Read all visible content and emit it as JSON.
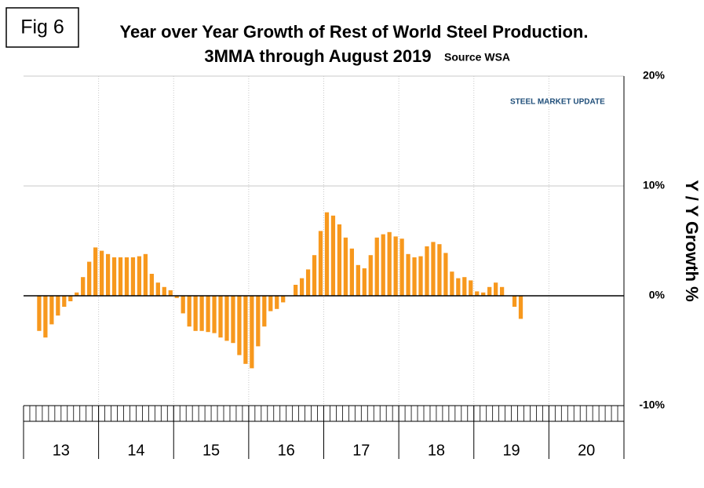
{
  "chart_data": {
    "type": "bar",
    "figure_label": "Fig 6",
    "title": "Year over Year Growth of Rest of World Steel Production.",
    "subtitle": "3MMA through August 2019",
    "source": "Source WSA",
    "logo": "STEEL MARKET UPDATE",
    "y_label": "Y / Y Growth %",
    "color": "#f7981d",
    "grid": true,
    "year_labels": [
      "13",
      "14",
      "15",
      "16",
      "17",
      "18",
      "19",
      "20"
    ],
    "categories": [
      null,
      null,
      null,
      null,
      null,
      null,
      null,
      null,
      null,
      null,
      null,
      null,
      null,
      null,
      null,
      null,
      null,
      null,
      null,
      null,
      null,
      null,
      null,
      null,
      null,
      null,
      null,
      null,
      null,
      null,
      null,
      null,
      null,
      null,
      null,
      null,
      null,
      null,
      null,
      null,
      null,
      null,
      null,
      null,
      null,
      null,
      null,
      null,
      null,
      null,
      null,
      null,
      null,
      null,
      null,
      null,
      null,
      null,
      null,
      null,
      null,
      null,
      null,
      null,
      null,
      null,
      null,
      null,
      null,
      null,
      null,
      null,
      null,
      null,
      null,
      null,
      null,
      null,
      null,
      null,
      null,
      null,
      null,
      null,
      null,
      null,
      null,
      null,
      null,
      null,
      null,
      null,
      null,
      null,
      null,
      null
    ],
    "values": [
      null,
      null,
      -3.2,
      -3.8,
      -2.6,
      -1.8,
      -1.0,
      -0.5,
      0.3,
      1.7,
      3.1,
      4.4,
      4.1,
      3.8,
      3.5,
      3.5,
      3.5,
      3.5,
      3.6,
      3.8,
      2.0,
      1.2,
      0.8,
      0.5,
      -0.2,
      -1.6,
      -2.8,
      -3.2,
      -3.2,
      -3.3,
      -3.4,
      -3.8,
      -4.1,
      -4.3,
      -5.4,
      -6.2,
      -6.6,
      -4.6,
      -2.8,
      -1.4,
      -1.2,
      -0.6,
      0.0,
      1.0,
      1.6,
      2.4,
      3.7,
      5.9,
      7.6,
      7.3,
      6.5,
      5.3,
      4.3,
      2.8,
      2.5,
      3.7,
      5.3,
      5.6,
      5.8,
      5.4,
      5.2,
      3.8,
      3.5,
      3.6,
      4.5,
      4.9,
      4.7,
      3.9,
      2.2,
      1.6,
      1.7,
      1.4,
      0.4,
      0.3,
      0.8,
      1.2,
      0.8,
      0.0,
      -1.0,
      -2.1,
      null,
      null,
      null,
      null,
      null,
      null,
      null,
      null,
      null,
      null,
      null,
      null,
      null,
      null,
      null,
      null
    ],
    "ylim": [
      -10,
      20
    ],
    "yticks": [
      {
        "value": -10,
        "label": "-10%"
      },
      {
        "value": 0,
        "label": "0%"
      },
      {
        "value": 10,
        "label": "10%"
      },
      {
        "value": 20,
        "label": "20%"
      }
    ]
  }
}
